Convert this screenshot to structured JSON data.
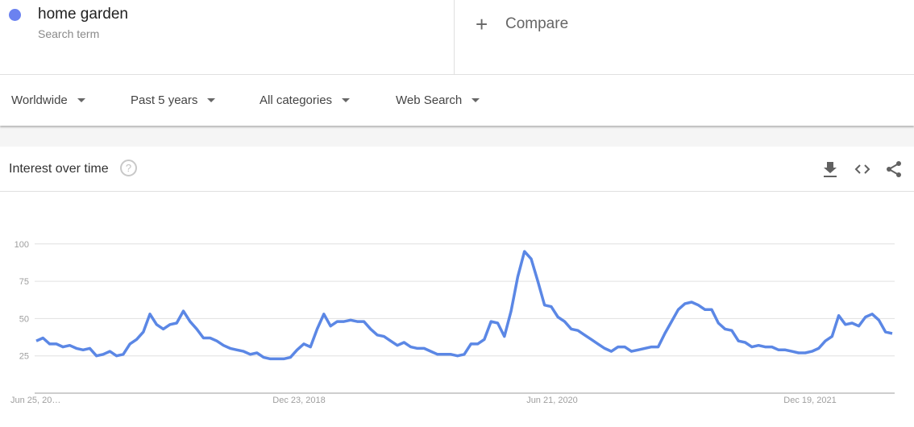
{
  "search_term": {
    "name": "home garden",
    "subtitle": "Search term",
    "color": "#6b82f0"
  },
  "compare": {
    "icon": "plus-icon",
    "label": "Compare"
  },
  "filters": [
    {
      "label": "Worldwide"
    },
    {
      "label": "Past 5 years"
    },
    {
      "label": "All categories"
    },
    {
      "label": "Web Search"
    }
  ],
  "card": {
    "title": "Interest over time",
    "help_icon": "help-circle-icon",
    "actions": [
      "download-icon",
      "embed-code-icon",
      "share-icon"
    ]
  },
  "chart_data": {
    "type": "line",
    "title": "",
    "xlabel": "",
    "ylabel": "",
    "ylim": [
      0,
      100
    ],
    "yticks": [
      "100",
      "75",
      "50",
      "25"
    ],
    "x_tick_labels": [
      "Jun 25, 20…",
      "Dec 23, 2018",
      "Jun 21, 2020",
      "Dec 19, 2021"
    ],
    "grid": true,
    "line_color": "#5b87e5",
    "values": [
      35,
      37,
      33,
      33,
      31,
      32,
      30,
      29,
      30,
      25,
      26,
      28,
      25,
      26,
      33,
      36,
      41,
      53,
      46,
      43,
      46,
      47,
      55,
      48,
      43,
      37,
      37,
      35,
      32,
      30,
      29,
      28,
      26,
      27,
      24,
      23,
      23,
      23,
      24,
      29,
      33,
      31,
      43,
      53,
      45,
      48,
      48,
      49,
      48,
      48,
      43,
      39,
      38,
      35,
      32,
      34,
      31,
      30,
      30,
      28,
      26,
      26,
      26,
      25,
      26,
      33,
      33,
      36,
      48,
      47,
      38,
      55,
      78,
      95,
      90,
      75,
      59,
      58,
      51,
      48,
      43,
      42,
      39,
      36,
      33,
      30,
      28,
      31,
      31,
      28,
      29,
      30,
      31,
      31,
      40,
      48,
      56,
      60,
      61,
      59,
      56,
      56,
      47,
      43,
      42,
      35,
      34,
      31,
      32,
      31,
      31,
      29,
      29,
      28,
      27,
      27,
      28,
      30,
      35,
      38,
      52,
      46,
      47,
      45,
      51,
      53,
      49,
      41,
      40
    ]
  }
}
